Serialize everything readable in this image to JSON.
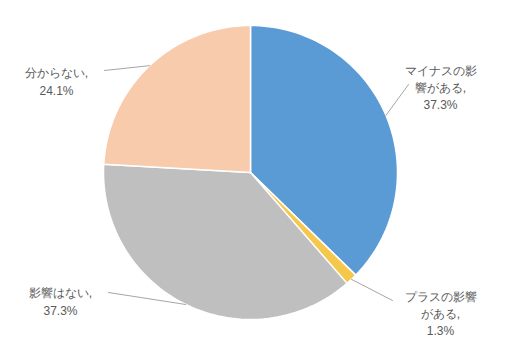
{
  "chart_data": {
    "type": "pie",
    "categories": [
      "マイナスの影響がある,",
      "プラスの影響がある,",
      "影響はない,",
      "分からない,"
    ],
    "values": [
      37.3,
      1.3,
      37.3,
      24.1
    ],
    "value_labels": [
      "37.3%",
      "1.3%",
      "37.3%",
      "24.1%"
    ],
    "colors": [
      "#5b9bd5",
      "#f5c84c",
      "#bfbfbf",
      "#f8cbad"
    ],
    "data_labels": true
  }
}
